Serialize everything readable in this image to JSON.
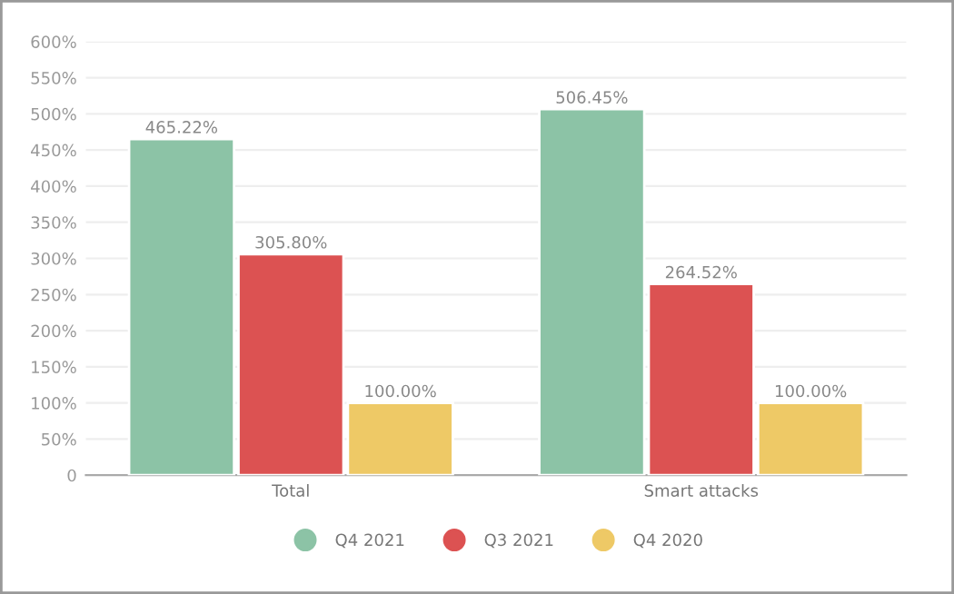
{
  "chart_data": {
    "type": "bar",
    "categories": [
      "Total",
      "Smart attacks"
    ],
    "series": [
      {
        "name": "Q4 2021",
        "color": "#8cc3a6",
        "values": [
          465.22,
          506.45
        ],
        "value_labels": [
          "465.22%",
          "506.45%"
        ]
      },
      {
        "name": "Q3 2021",
        "color": "#dc5252",
        "values": [
          305.8,
          264.52
        ],
        "value_labels": [
          "305.80%",
          "264.52%"
        ]
      },
      {
        "name": "Q4 2020",
        "color": "#eec966",
        "values": [
          100,
          100
        ],
        "value_labels": [
          "100.00%",
          "100.00%"
        ]
      }
    ],
    "ylim": [
      0,
      600
    ],
    "yticks": [
      0,
      {
        "value": 50,
        "label": "50%"
      },
      {
        "value": 100,
        "label": "100%"
      },
      {
        "value": 150,
        "label": "150%"
      },
      {
        "value": 200,
        "label": "200%"
      },
      {
        "value": 250,
        "label": "250%"
      },
      {
        "value": 300,
        "label": "300%"
      },
      {
        "value": 350,
        "label": "350%"
      },
      {
        "value": 400,
        "label": "400%"
      },
      {
        "value": 450,
        "label": "450%"
      },
      {
        "value": 500,
        "label": "500%"
      },
      {
        "value": 550,
        "label": "550%"
      },
      {
        "value": 600,
        "label": "600%"
      }
    ],
    "grid": "y",
    "legend": "bottom"
  }
}
